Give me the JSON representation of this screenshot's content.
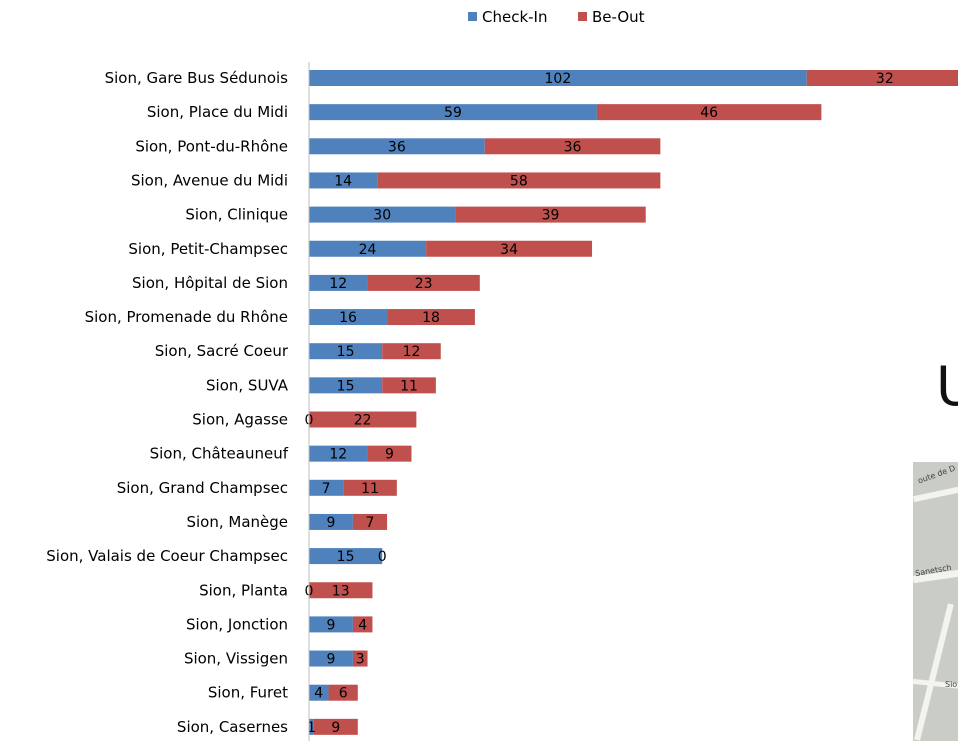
{
  "chart_data": {
    "type": "bar",
    "orientation": "horizontal",
    "stacked": true,
    "legend_position": "top",
    "grid": false,
    "categories": [
      "Sion, Gare Bus Sédunois",
      "Sion, Place du Midi",
      "Sion, Pont-du-Rhône",
      "Sion, Avenue du Midi",
      "Sion, Clinique",
      "Sion, Petit-Champsec",
      "Sion, Hôpital de Sion",
      "Sion, Promenade du Rhône",
      "Sion, Sacré Coeur",
      "Sion, SUVA",
      "Sion, Agasse",
      "Sion, Châteauneuf",
      "Sion, Grand Champsec",
      "Sion, Manège",
      "Sion, Valais de Coeur Champsec",
      "Sion, Planta",
      "Sion, Jonction",
      "Sion, Vissigen",
      "Sion, Furet",
      "Sion, Casernes"
    ],
    "series": [
      {
        "name": "Check-In",
        "color": "#4F81BD",
        "values": [
          102,
          59,
          36,
          14,
          30,
          24,
          12,
          16,
          15,
          15,
          0,
          12,
          7,
          9,
          15,
          0,
          9,
          9,
          4,
          1
        ]
      },
      {
        "name": "Be-Out",
        "color": "#C0504D",
        "values": [
          32,
          46,
          36,
          58,
          39,
          34,
          23,
          18,
          12,
          11,
          22,
          9,
          11,
          7,
          0,
          13,
          4,
          3,
          6,
          9
        ]
      }
    ]
  },
  "side": {
    "cut_letter": "U",
    "map_labels": [
      "oute de D",
      "Sanetsch",
      "Sio"
    ]
  }
}
